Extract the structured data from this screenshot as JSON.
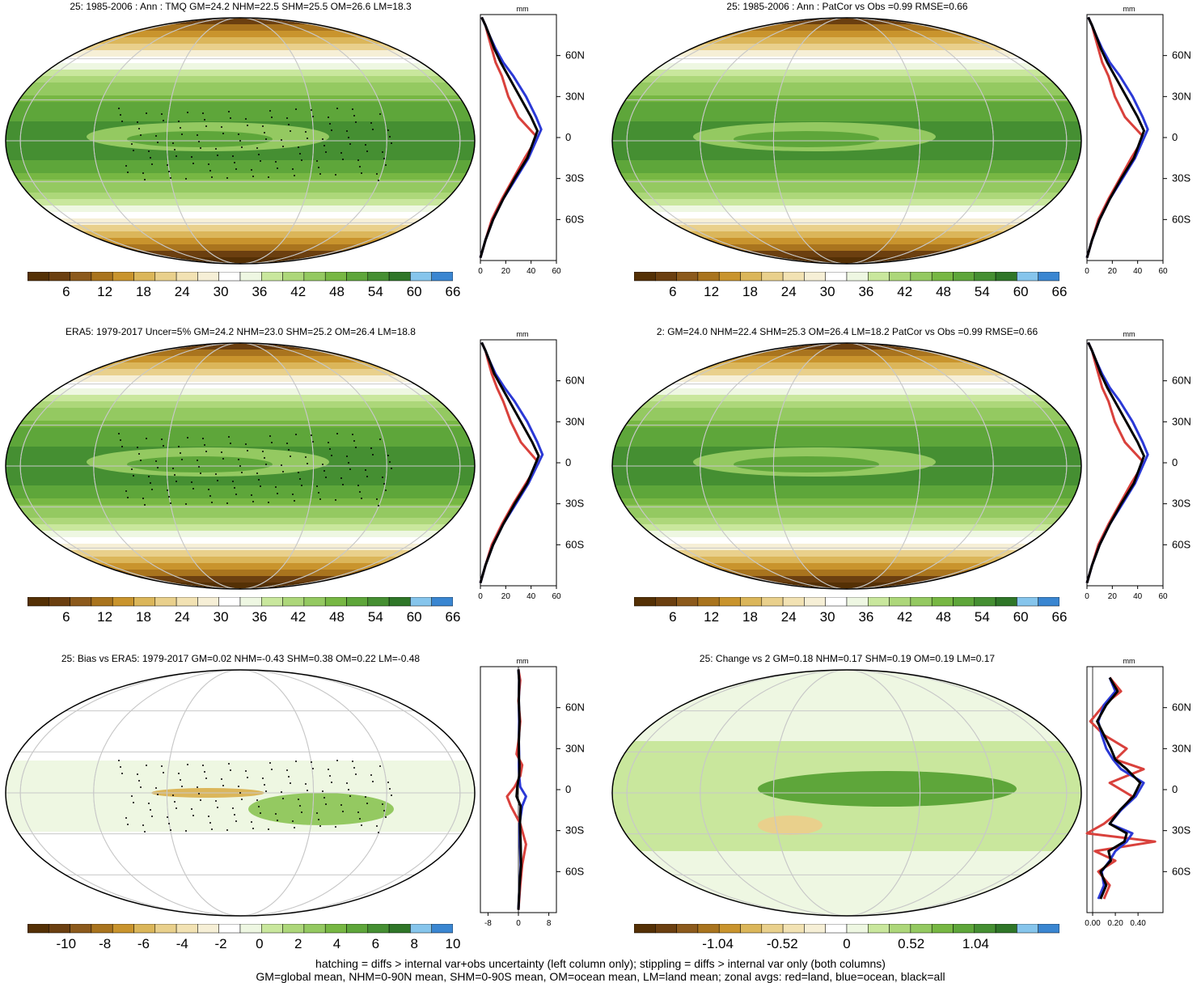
{
  "colors": {
    "palette": [
      "#543005",
      "#6b3f10",
      "#8c5a1c",
      "#a9741e",
      "#c9942d",
      "#dbb65a",
      "#e9d08c",
      "#f2e2b3",
      "#f6efd6",
      "#ffffff",
      "#eef7e2",
      "#c9e79d",
      "#add77a",
      "#94c961",
      "#77b743",
      "#5ea63a",
      "#458f32",
      "#2f7628",
      "#86c5ec",
      "#3a86d1"
    ],
    "land": "#d9413c",
    "ocean": "#2b39d6",
    "all": "#000000",
    "grid": "#c8c8c8"
  },
  "chart_data": [
    {
      "type": "heatmap",
      "title": "25: 1985-2006 : Ann : TMQ GM=24.2 NHM=22.5 SHM=25.5 OM=26.6 LM=18.3",
      "colorbar_labels": [
        "6",
        "12",
        "18",
        "24",
        "30",
        "36",
        "42",
        "48",
        "54",
        "60",
        "66"
      ],
      "stippling": true
    },
    {
      "type": "line",
      "unit": "mm",
      "y_ticks": [
        "60N",
        "30N",
        "0",
        "30S",
        "60S"
      ],
      "x_ticks": [
        "0",
        "20",
        "40",
        "60"
      ],
      "xlim": [
        0,
        60
      ],
      "series": [
        {
          "key": "land",
          "x": [
            0,
            4,
            9,
            17,
            26,
            35,
            45,
            30,
            22,
            17,
            12,
            9,
            6,
            4,
            1
          ],
          "y": [
            -88,
            -75,
            -60,
            -45,
            -30,
            -15,
            0,
            15,
            30,
            45,
            55,
            65,
            75,
            82,
            88
          ]
        },
        {
          "key": "ocean",
          "x": [
            0,
            4,
            10,
            18,
            28,
            38,
            48,
            44,
            36,
            26,
            18,
            12,
            7,
            4,
            1
          ],
          "y": [
            -88,
            -75,
            -60,
            -45,
            -30,
            -15,
            6,
            15,
            30,
            45,
            55,
            65,
            75,
            82,
            88
          ]
        },
        {
          "key": "all",
          "x": [
            0,
            4,
            10,
            18,
            27,
            37,
            45,
            40,
            31,
            22,
            16,
            11,
            7,
            4,
            1
          ],
          "y": [
            -88,
            -75,
            -60,
            -45,
            -30,
            -15,
            5,
            15,
            30,
            45,
            55,
            65,
            75,
            82,
            88
          ]
        }
      ]
    },
    {
      "type": "heatmap",
      "title": "25: 1985-2006 : Ann : PatCor vs Obs =0.99 RMSE=0.66",
      "colorbar_labels": [
        "6",
        "12",
        "18",
        "24",
        "30",
        "36",
        "42",
        "48",
        "54",
        "60",
        "66"
      ],
      "stippling": false
    },
    {
      "type": "line",
      "unit": "mm",
      "y_ticks": [
        "60N",
        "30N",
        "0",
        "30S",
        "60S"
      ],
      "x_ticks": [
        "0",
        "20",
        "40",
        "60"
      ],
      "xlim": [
        0,
        60
      ],
      "series": [
        {
          "key": "land",
          "x": [
            0,
            4,
            9,
            17,
            26,
            35,
            45,
            30,
            22,
            17,
            12,
            9,
            6,
            4,
            1
          ],
          "y": [
            -88,
            -75,
            -60,
            -45,
            -30,
            -15,
            0,
            15,
            30,
            45,
            55,
            65,
            75,
            82,
            88
          ]
        },
        {
          "key": "ocean",
          "x": [
            0,
            4,
            10,
            18,
            28,
            38,
            48,
            44,
            36,
            26,
            18,
            12,
            7,
            4,
            1
          ],
          "y": [
            -88,
            -75,
            -60,
            -45,
            -30,
            -15,
            6,
            15,
            30,
            45,
            55,
            65,
            75,
            82,
            88
          ]
        },
        {
          "key": "all",
          "x": [
            0,
            4,
            10,
            18,
            27,
            37,
            45,
            40,
            31,
            22,
            16,
            11,
            7,
            4,
            1
          ],
          "y": [
            -88,
            -75,
            -60,
            -45,
            -30,
            -15,
            5,
            15,
            30,
            45,
            55,
            65,
            75,
            82,
            88
          ]
        }
      ]
    },
    {
      "type": "heatmap",
      "title": "ERA5: 1979-2017 Uncer=5% GM=24.2 NHM=23.0 SHM=25.2 OM=26.4 LM=18.8",
      "colorbar_labels": [
        "6",
        "12",
        "18",
        "24",
        "30",
        "36",
        "42",
        "48",
        "54",
        "60",
        "66"
      ],
      "stippling": true
    },
    {
      "type": "line",
      "unit": "mm",
      "y_ticks": [
        "60N",
        "30N",
        "0",
        "30S",
        "60S"
      ],
      "x_ticks": [
        "0",
        "20",
        "40",
        "60"
      ],
      "xlim": [
        0,
        60
      ],
      "series": [
        {
          "key": "land",
          "x": [
            0,
            4,
            9,
            17,
            26,
            36,
            46,
            32,
            24,
            18,
            13,
            9,
            6,
            4,
            1
          ],
          "y": [
            -88,
            -75,
            -60,
            -45,
            -30,
            -15,
            0,
            15,
            30,
            45,
            55,
            65,
            75,
            82,
            88
          ]
        },
        {
          "key": "ocean",
          "x": [
            0,
            4,
            10,
            18,
            28,
            38,
            49,
            45,
            37,
            27,
            19,
            12,
            7,
            4,
            1
          ],
          "y": [
            -88,
            -75,
            -60,
            -45,
            -30,
            -15,
            6,
            15,
            30,
            45,
            55,
            65,
            75,
            82,
            88
          ]
        },
        {
          "key": "all",
          "x": [
            0,
            4,
            10,
            18,
            27,
            37,
            46,
            41,
            32,
            23,
            17,
            11,
            7,
            4,
            1
          ],
          "y": [
            -88,
            -75,
            -60,
            -45,
            -30,
            -15,
            5,
            15,
            30,
            45,
            55,
            65,
            75,
            82,
            88
          ]
        }
      ]
    },
    {
      "type": "heatmap",
      "title": "2: GM=24.0 NHM=22.4 SHM=25.3 OM=26.4 LM=18.2 PatCor vs Obs =0.99 RMSE=0.66",
      "colorbar_labels": [
        "6",
        "12",
        "18",
        "24",
        "30",
        "36",
        "42",
        "48",
        "54",
        "60",
        "66"
      ],
      "stippling": false
    },
    {
      "type": "line",
      "unit": "mm",
      "y_ticks": [
        "60N",
        "30N",
        "0",
        "30S",
        "60S"
      ],
      "x_ticks": [
        "0",
        "20",
        "40",
        "60"
      ],
      "xlim": [
        0,
        60
      ],
      "series": [
        {
          "key": "land",
          "x": [
            0,
            4,
            9,
            17,
            26,
            35,
            45,
            30,
            22,
            17,
            12,
            9,
            6,
            4,
            1
          ],
          "y": [
            -88,
            -75,
            -60,
            -45,
            -30,
            -15,
            0,
            15,
            30,
            45,
            55,
            65,
            75,
            82,
            88
          ]
        },
        {
          "key": "ocean",
          "x": [
            0,
            4,
            10,
            18,
            28,
            38,
            48,
            44,
            36,
            26,
            18,
            12,
            7,
            4,
            1
          ],
          "y": [
            -88,
            -75,
            -60,
            -45,
            -30,
            -15,
            6,
            15,
            30,
            45,
            55,
            65,
            75,
            82,
            88
          ]
        },
        {
          "key": "all",
          "x": [
            0,
            4,
            10,
            18,
            27,
            37,
            45,
            40,
            31,
            22,
            16,
            11,
            7,
            4,
            1
          ],
          "y": [
            -88,
            -75,
            -60,
            -45,
            -30,
            -15,
            5,
            15,
            30,
            45,
            55,
            65,
            75,
            82,
            88
          ]
        }
      ]
    },
    {
      "type": "heatmap",
      "title": "25: Bias vs ERA5: 1979-2017 GM=0.02 NHM=-0.43 SHM=0.38 OM=0.22 LM=-0.48",
      "colorbar_labels": [
        "-10",
        "-8",
        "-6",
        "-4",
        "-2",
        "0",
        "2",
        "4",
        "6",
        "8",
        "10"
      ],
      "stippling": true
    },
    {
      "type": "line",
      "unit": "mm",
      "y_ticks": [
        "60N",
        "30N",
        "0",
        "30S",
        "60S"
      ],
      "x_ticks": [
        "-8",
        "0",
        "8"
      ],
      "xlim": [
        -10,
        10
      ],
      "series": [
        {
          "key": "land",
          "x": [
            0,
            0.5,
            1,
            2,
            0.5,
            -2,
            -3,
            -1,
            0.5,
            1,
            -0.5,
            0,
            0.5,
            0,
            0.5,
            0
          ],
          "y": [
            -88,
            -70,
            -55,
            -40,
            -25,
            -12,
            -5,
            2,
            10,
            18,
            26,
            35,
            50,
            65,
            80,
            88
          ]
        },
        {
          "key": "ocean",
          "x": [
            0,
            0.3,
            0.6,
            0.4,
            0.3,
            1,
            2,
            0.5,
            0.2,
            0.1,
            0.2,
            0.1,
            0.2,
            0.1,
            0.2,
            0
          ],
          "y": [
            -88,
            -70,
            -55,
            -40,
            -25,
            -12,
            -5,
            2,
            10,
            18,
            26,
            35,
            50,
            65,
            80,
            88
          ]
        },
        {
          "key": "all",
          "x": [
            0,
            0.3,
            0.7,
            0.6,
            0.4,
            0.6,
            -0.5,
            -0.3,
            0.2,
            0.3,
            0.1,
            0.1,
            0.3,
            0.1,
            0.2,
            0
          ],
          "y": [
            -88,
            -70,
            -55,
            -40,
            -25,
            -12,
            -5,
            2,
            10,
            18,
            26,
            35,
            50,
            65,
            80,
            88
          ]
        }
      ]
    },
    {
      "type": "heatmap",
      "title": "25: Change vs 2 GM=0.18 NHM=0.17 SHM=0.19 OM=0.19 LM=0.17",
      "colorbar_labels": [
        "-1.04",
        "-0.52",
        "0",
        "0.52",
        "1.04"
      ],
      "stippling": false
    },
    {
      "type": "line",
      "unit": "mm",
      "y_ticks": [
        "60N",
        "30N",
        "0",
        "30S",
        "60S"
      ],
      "x_ticks": [
        "0.00",
        "0.20",
        "0.40"
      ],
      "xlim": [
        -0.05,
        0.62
      ],
      "series": [
        {
          "key": "land",
          "x": [
            0.1,
            0.15,
            0.05,
            0.2,
            0.02,
            0.55,
            -0.05,
            0.1,
            0.25,
            0.35,
            0.15,
            0.45,
            0.2,
            0.3,
            0.1,
            -0.02,
            0.1,
            0.25,
            0.15
          ],
          "y": [
            -80,
            -70,
            -60,
            -52,
            -45,
            -38,
            -32,
            -25,
            -15,
            -5,
            5,
            15,
            22,
            30,
            40,
            50,
            62,
            72,
            82
          ]
        },
        {
          "key": "ocean",
          "x": [
            0.05,
            0.1,
            0.08,
            0.15,
            0.2,
            0.3,
            0.35,
            0.15,
            0.25,
            0.38,
            0.45,
            0.25,
            0.18,
            0.12,
            0.08,
            0.05,
            0.1,
            0.2,
            0.15
          ],
          "y": [
            -80,
            -70,
            -60,
            -52,
            -45,
            -38,
            -32,
            -25,
            -15,
            -5,
            5,
            15,
            22,
            30,
            40,
            50,
            62,
            72,
            82
          ]
        },
        {
          "key": "all",
          "x": [
            0.07,
            0.12,
            0.07,
            0.16,
            0.14,
            0.28,
            0.3,
            0.15,
            0.24,
            0.36,
            0.42,
            0.3,
            0.2,
            0.16,
            0.1,
            0.04,
            0.12,
            0.22,
            0.15
          ],
          "y": [
            -80,
            -70,
            -60,
            -52,
            -45,
            -38,
            -32,
            -25,
            -15,
            -5,
            5,
            15,
            22,
            30,
            40,
            50,
            62,
            72,
            82
          ]
        }
      ]
    }
  ],
  "footer": {
    "line1": "hatching = diffs > internal var+obs uncertainty (left column only); stippling = diffs > internal var only (both columns)",
    "line2": "GM=global mean, NHM=0-90N mean, SHM=0-90S mean, OM=ocean mean, LM=land mean; zonal avgs: red=land, blue=ocean, black=all"
  }
}
